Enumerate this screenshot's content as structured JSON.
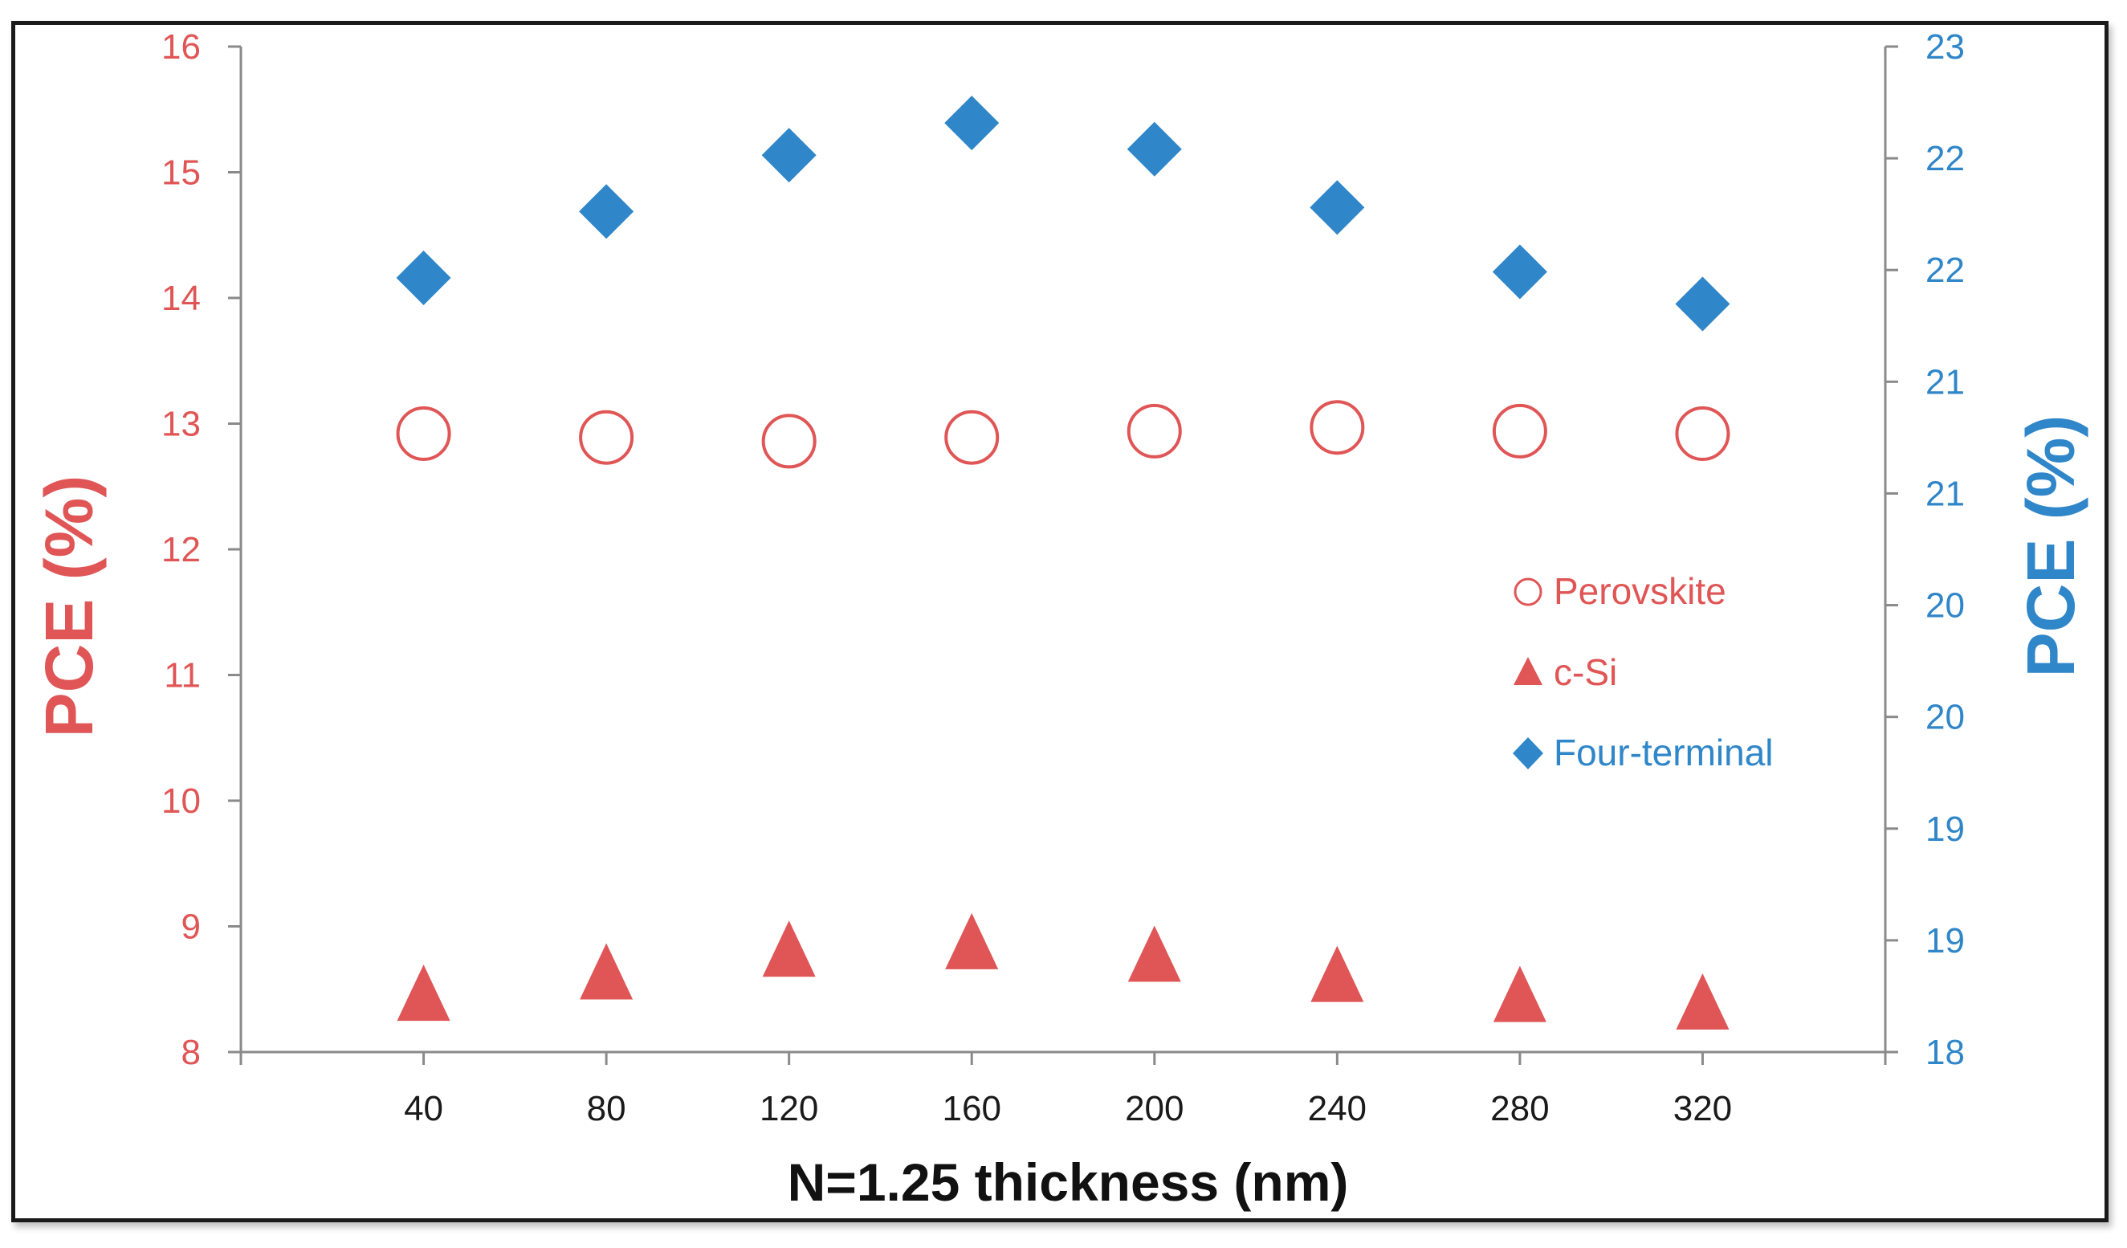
{
  "chart_data": {
    "type": "scatter",
    "xlabel": "N=1.25 thickness (nm)",
    "ylabel_left": "PCE (%)",
    "ylabel_right": "PCE (%)",
    "x_categories": [
      40,
      80,
      120,
      160,
      200,
      240,
      280,
      320
    ],
    "x_range": [
      0,
      360
    ],
    "ylim_left": [
      8,
      16
    ],
    "ylim_right": [
      18,
      23
    ],
    "left_ticks": [
      "8",
      "9",
      "10",
      "11",
      "12",
      "13",
      "14",
      "15",
      "16"
    ],
    "right_ticks": [
      "18",
      "19",
      "19",
      "20",
      "20",
      "21",
      "21",
      "22",
      "22",
      "23"
    ],
    "grid": false,
    "legend_position": "right-middle",
    "series": [
      {
        "name": "Perovskite",
        "axis": "left",
        "marker": "open-circle",
        "color": "#e05555",
        "x": [
          40,
          80,
          120,
          160,
          200,
          240,
          280,
          320
        ],
        "values": [
          12.92,
          12.89,
          12.86,
          12.89,
          12.94,
          12.97,
          12.94,
          12.92
        ]
      },
      {
        "name": "c-Si",
        "axis": "left",
        "marker": "filled-triangle",
        "color": "#e05555",
        "x": [
          40,
          80,
          120,
          160,
          200,
          240,
          280,
          320
        ],
        "values": [
          8.45,
          8.62,
          8.8,
          8.86,
          8.76,
          8.6,
          8.44,
          8.38
        ]
      },
      {
        "name": "Four-terminal",
        "axis": "right",
        "marker": "filled-diamond",
        "color": "#2f86c8",
        "x": [
          40,
          80,
          120,
          160,
          200,
          240,
          280,
          320
        ],
        "values": [
          21.85,
          22.18,
          22.46,
          22.62,
          22.49,
          22.2,
          21.88,
          21.72
        ]
      }
    ]
  }
}
